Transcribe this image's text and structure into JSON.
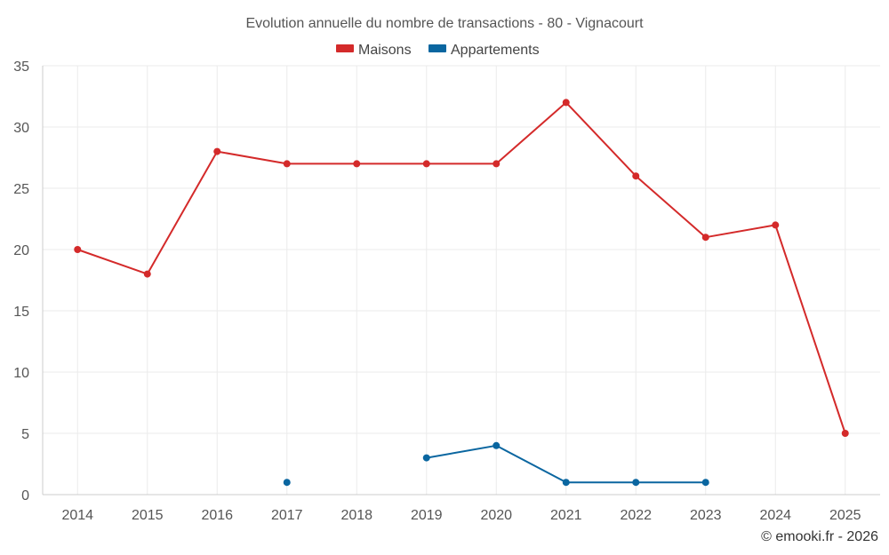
{
  "chart_data": {
    "type": "line",
    "title": "Evolution annuelle du nombre de transactions - 80 - Vignacourt",
    "categories": [
      "2014",
      "2015",
      "2016",
      "2017",
      "2018",
      "2019",
      "2020",
      "2021",
      "2022",
      "2023",
      "2024",
      "2025"
    ],
    "series": [
      {
        "name": "Maisons",
        "color": "#d42a2a",
        "values": [
          20,
          18,
          28,
          27,
          27,
          27,
          27,
          32,
          26,
          21,
          22,
          5
        ]
      },
      {
        "name": "Appartements",
        "color": "#0a66a0",
        "values": [
          null,
          null,
          null,
          1,
          null,
          3,
          4,
          1,
          1,
          1,
          null,
          null
        ]
      }
    ],
    "ylim": [
      0,
      35
    ],
    "yticks": [
      0,
      5,
      10,
      15,
      20,
      25,
      30,
      35
    ],
    "xlabel": "",
    "ylabel": "",
    "grid": true,
    "legend": "top-center"
  },
  "credit": "© emooki.fr - 2026"
}
